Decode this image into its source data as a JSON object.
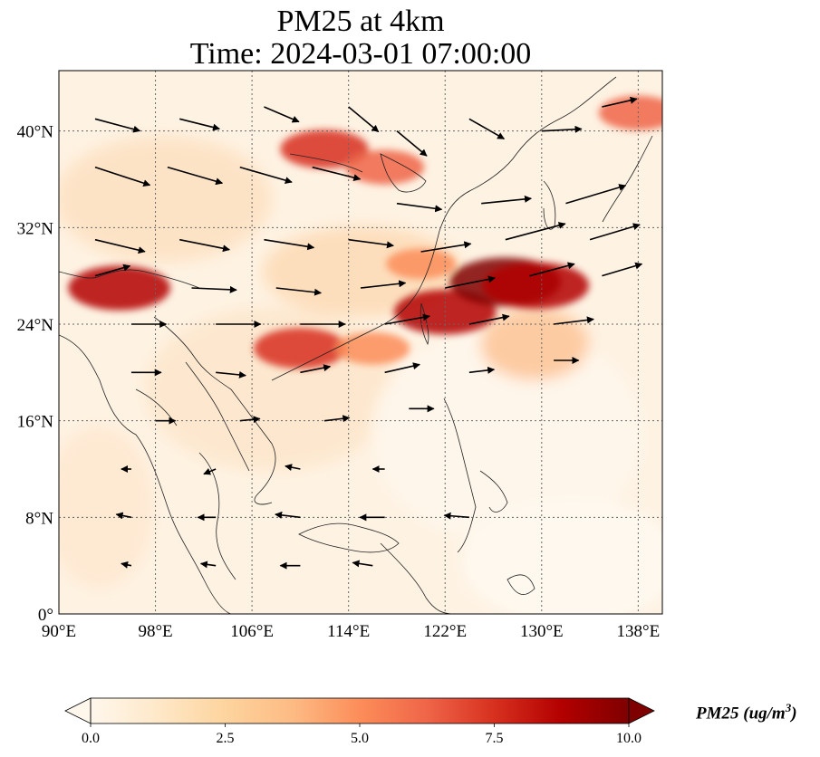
{
  "title": {
    "line1": "PM25 at 4km",
    "line2": "Time: 2024-03-01 07:00:00"
  },
  "map": {
    "lon_range": [
      90,
      140
    ],
    "lat_range": [
      0,
      45
    ],
    "lon_ticks": [
      "90°E",
      "98°E",
      "106°E",
      "114°E",
      "122°E",
      "130°E",
      "138°E"
    ],
    "lat_ticks": [
      "0°",
      "8°N",
      "16°N",
      "24°N",
      "32°N",
      "40°N"
    ],
    "gridlines": true
  },
  "colorbar": {
    "ticks": [
      "0.0",
      "2.5",
      "5.0",
      "7.5",
      "10.0"
    ],
    "range": [
      0,
      10
    ],
    "extend": "both",
    "label_main": "PM25 (ug/m",
    "label_sup": "3",
    "label_end": ")",
    "colormap": [
      "#fff7ec",
      "#fee8c8",
      "#fdd49e",
      "#fdbb84",
      "#fc8d59",
      "#ef6548",
      "#d7301f",
      "#b30000",
      "#7f0000"
    ]
  },
  "chart_data": {
    "type": "heatmap",
    "variable": "PM25",
    "units": "ug/m3",
    "plumes": [
      {
        "lon": 122,
        "lat": 25,
        "value": 8.5
      },
      {
        "lon": 127,
        "lat": 27.5,
        "value": 9.5
      },
      {
        "lon": 129.5,
        "lat": 27.2,
        "value": 9.0
      },
      {
        "lon": 110,
        "lat": 22,
        "value": 7.5
      },
      {
        "lon": 95,
        "lat": 27,
        "value": 8.5
      },
      {
        "lon": 112,
        "lat": 38.5,
        "value": 7.0
      },
      {
        "lon": 117,
        "lat": 37,
        "value": 6.0
      },
      {
        "lon": 138,
        "lat": 41.5,
        "value": 6.0
      },
      {
        "lon": 120,
        "lat": 29,
        "value": 5.0
      },
      {
        "lon": 116,
        "lat": 22,
        "value": 5.5
      }
    ],
    "wind_vectors": [
      {
        "lon": 93,
        "lat": 37,
        "u": 5.5,
        "v": -1.8
      },
      {
        "lon": 99,
        "lat": 37,
        "u": 5.5,
        "v": -1.6
      },
      {
        "lon": 105,
        "lat": 37,
        "u": 5.2,
        "v": -1.5
      },
      {
        "lon": 111,
        "lat": 37,
        "u": 4.8,
        "v": -1.2
      },
      {
        "lon": 93,
        "lat": 41,
        "u": 4.5,
        "v": -1.2
      },
      {
        "lon": 100,
        "lat": 41,
        "u": 4.0,
        "v": -1.0
      },
      {
        "lon": 107,
        "lat": 42,
        "u": 3.5,
        "v": -1.5
      },
      {
        "lon": 114,
        "lat": 42,
        "u": 3.0,
        "v": -2.5
      },
      {
        "lon": 118,
        "lat": 40,
        "u": 3.0,
        "v": -2.5
      },
      {
        "lon": 124,
        "lat": 41,
        "u": 3.5,
        "v": -2.0
      },
      {
        "lon": 130,
        "lat": 40,
        "u": 4.0,
        "v": 0.2
      },
      {
        "lon": 135,
        "lat": 42,
        "u": 3.5,
        "v": 0.8
      },
      {
        "lon": 118,
        "lat": 34,
        "u": 4.5,
        "v": -0.6
      },
      {
        "lon": 125,
        "lat": 34,
        "u": 5.0,
        "v": 0.5
      },
      {
        "lon": 132,
        "lat": 34,
        "u": 6.0,
        "v": 1.8
      },
      {
        "lon": 93,
        "lat": 31,
        "u": 5.0,
        "v": -1.2
      },
      {
        "lon": 100,
        "lat": 31,
        "u": 5.0,
        "v": -1.0
      },
      {
        "lon": 107,
        "lat": 31,
        "u": 5.0,
        "v": -0.8
      },
      {
        "lon": 114,
        "lat": 31,
        "u": 4.5,
        "v": -0.6
      },
      {
        "lon": 120,
        "lat": 30,
        "u": 5.0,
        "v": 0.8
      },
      {
        "lon": 127,
        "lat": 31,
        "u": 6.0,
        "v": 1.6
      },
      {
        "lon": 134,
        "lat": 31,
        "u": 5.0,
        "v": 1.5
      },
      {
        "lon": 93,
        "lat": 28,
        "u": 3.5,
        "v": 1.0
      },
      {
        "lon": 101,
        "lat": 27,
        "u": 4.5,
        "v": -0.2
      },
      {
        "lon": 108,
        "lat": 27,
        "u": 4.5,
        "v": -0.5
      },
      {
        "lon": 115,
        "lat": 27,
        "u": 4.5,
        "v": 0.5
      },
      {
        "lon": 122,
        "lat": 27,
        "u": 5.0,
        "v": 1.0
      },
      {
        "lon": 129,
        "lat": 28,
        "u": 4.5,
        "v": 1.2
      },
      {
        "lon": 135,
        "lat": 28,
        "u": 4.0,
        "v": 1.2
      },
      {
        "lon": 96,
        "lat": 24,
        "u": 3.5,
        "v": 0.0
      },
      {
        "lon": 103,
        "lat": 24,
        "u": 4.5,
        "v": 0.0
      },
      {
        "lon": 110,
        "lat": 24,
        "u": 4.5,
        "v": 0.0
      },
      {
        "lon": 117,
        "lat": 24,
        "u": 4.5,
        "v": 0.8
      },
      {
        "lon": 124,
        "lat": 24,
        "u": 4.0,
        "v": 0.8
      },
      {
        "lon": 131,
        "lat": 24,
        "u": 4.0,
        "v": 0.5
      },
      {
        "lon": 96,
        "lat": 20,
        "u": 3.0,
        "v": 0.0
      },
      {
        "lon": 103,
        "lat": 20,
        "u": 3.0,
        "v": -0.3
      },
      {
        "lon": 110,
        "lat": 20,
        "u": 3.0,
        "v": 0.6
      },
      {
        "lon": 117,
        "lat": 20,
        "u": 3.5,
        "v": 0.8
      },
      {
        "lon": 124,
        "lat": 20,
        "u": 2.5,
        "v": 0.3
      },
      {
        "lon": 131,
        "lat": 21,
        "u": 2.5,
        "v": 0.0
      },
      {
        "lon": 98,
        "lat": 16,
        "u": 2.0,
        "v": 0.0
      },
      {
        "lon": 105,
        "lat": 16,
        "u": 2.0,
        "v": 0.2
      },
      {
        "lon": 112,
        "lat": 16,
        "u": 2.5,
        "v": 0.3
      },
      {
        "lon": 119,
        "lat": 17,
        "u": 2.5,
        "v": 0.0
      },
      {
        "lon": 96,
        "lat": 12,
        "u": -1.0,
        "v": 0.0
      },
      {
        "lon": 103,
        "lat": 12,
        "u": -1.2,
        "v": -0.5
      },
      {
        "lon": 110,
        "lat": 12,
        "u": -1.5,
        "v": 0.3
      },
      {
        "lon": 117,
        "lat": 12,
        "u": -1.2,
        "v": 0.0
      },
      {
        "lon": 96,
        "lat": 8,
        "u": -1.5,
        "v": 0.3
      },
      {
        "lon": 103,
        "lat": 8,
        "u": -1.8,
        "v": 0.0
      },
      {
        "lon": 110,
        "lat": 8,
        "u": -2.5,
        "v": 0.3
      },
      {
        "lon": 117,
        "lat": 8,
        "u": -2.5,
        "v": 0.0
      },
      {
        "lon": 124,
        "lat": 8,
        "u": -2.5,
        "v": 0.2
      },
      {
        "lon": 96,
        "lat": 4,
        "u": -1.0,
        "v": 0.2
      },
      {
        "lon": 103,
        "lat": 4,
        "u": -1.5,
        "v": 0.2
      },
      {
        "lon": 110,
        "lat": 4,
        "u": -2.0,
        "v": 0.0
      },
      {
        "lon": 116,
        "lat": 4,
        "u": -2.0,
        "v": 0.3
      }
    ]
  }
}
